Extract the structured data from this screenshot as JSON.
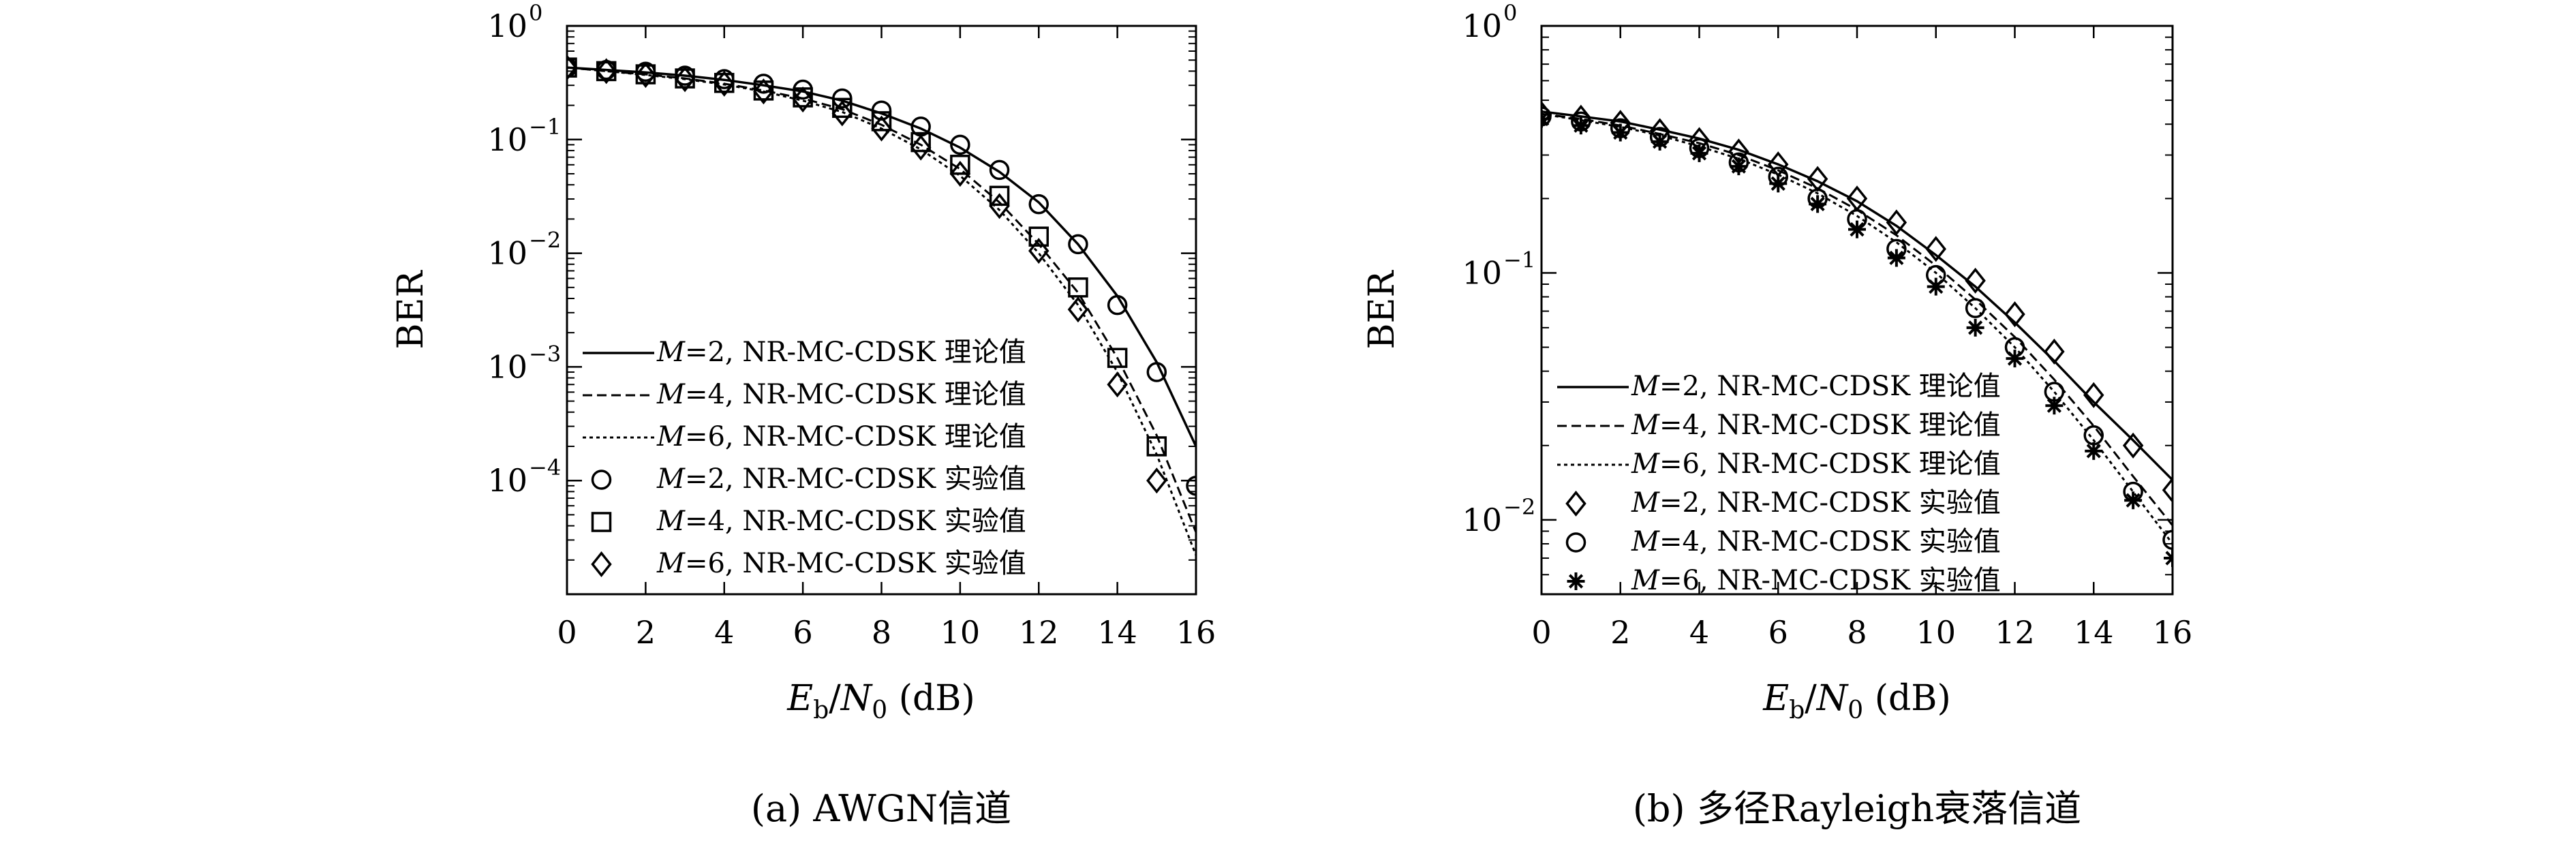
{
  "chart_data": [
    {
      "type": "line",
      "caption": "(a) AWGN信道",
      "ylabel": "BER",
      "xlabel": {
        "base": "E",
        "sub1": "b",
        "mid": "/N",
        "sub2": "0",
        "unit": " (dB)"
      },
      "xlim": [
        0,
        16
      ],
      "ylim": [
        1e-05,
        1
      ],
      "yscale": "log",
      "x_ticks": [
        0,
        2,
        4,
        6,
        8,
        10,
        12,
        14,
        16
      ],
      "y_ticks": [
        {
          "value": 1,
          "label": "10",
          "exp": "0"
        },
        {
          "value": 0.1,
          "label": "10",
          "exp": "−1"
        },
        {
          "value": 0.01,
          "label": "10",
          "exp": "−2"
        },
        {
          "value": 0.001,
          "label": "10",
          "exp": "−3"
        },
        {
          "value": 0.0001,
          "label": "10",
          "exp": "−4"
        }
      ],
      "grid": false,
      "legend_position": "bottom-left",
      "x": [
        0,
        1,
        2,
        3,
        4,
        5,
        6,
        7,
        8,
        9,
        10,
        11,
        12,
        13,
        14,
        15,
        16
      ],
      "series": [
        {
          "label": "=2, NR-MC-CDSK 理论值",
          "var": "M",
          "kind": "line",
          "dash": "solid",
          "values": [
            0.43,
            0.41,
            0.39,
            0.365,
            0.335,
            0.3,
            0.265,
            0.22,
            0.17,
            0.125,
            0.085,
            0.052,
            0.028,
            0.012,
            0.0042,
            0.0011,
            0.0002
          ]
        },
        {
          "label": "=4, NR-MC-CDSK 理论值",
          "var": "M",
          "kind": "line",
          "dash": "dashed",
          "values": [
            0.43,
            0.4,
            0.375,
            0.345,
            0.31,
            0.27,
            0.23,
            0.185,
            0.135,
            0.09,
            0.055,
            0.028,
            0.012,
            0.0045,
            0.0012,
            0.00025,
            3.5e-05
          ]
        },
        {
          "label": "=6, NR-MC-CDSK 理论值",
          "var": "M",
          "kind": "line",
          "dash": "dotted",
          "values": [
            0.43,
            0.4,
            0.37,
            0.34,
            0.305,
            0.265,
            0.22,
            0.175,
            0.125,
            0.082,
            0.048,
            0.024,
            0.01,
            0.0035,
            0.0009,
            0.00017,
            2.2e-05
          ]
        },
        {
          "label": "=2, NR-MC-CDSK 实验值",
          "var": "M",
          "kind": "marker",
          "marker": "circle",
          "values": [
            0.43,
            0.41,
            0.395,
            0.365,
            0.34,
            0.31,
            0.275,
            0.23,
            0.18,
            0.13,
            0.09,
            0.054,
            0.027,
            0.012,
            0.0035,
            0.0009,
            9e-05
          ]
        },
        {
          "label": "=4, NR-MC-CDSK 实验值",
          "var": "M",
          "kind": "marker",
          "marker": "square",
          "values": [
            0.43,
            0.4,
            0.375,
            0.345,
            0.315,
            0.27,
            0.235,
            0.19,
            0.145,
            0.095,
            0.06,
            0.032,
            0.014,
            0.005,
            0.0012,
            0.0002,
            null
          ]
        },
        {
          "label": "=6, NR-MC-CDSK 实验值",
          "var": "M",
          "kind": "marker",
          "marker": "diamond",
          "values": [
            0.43,
            0.4,
            0.37,
            0.34,
            0.31,
            0.265,
            0.225,
            0.17,
            0.125,
            0.085,
            0.05,
            0.026,
            0.0105,
            0.0032,
            0.0007,
            0.0001,
            null
          ]
        }
      ]
    },
    {
      "type": "line",
      "caption": "(b) 多径Rayleigh衰落信道",
      "ylabel": "BER",
      "xlabel": {
        "base": "E",
        "sub1": "b",
        "mid": "/N",
        "sub2": "0",
        "unit": " (dB)"
      },
      "xlim": [
        0,
        16
      ],
      "ylim": [
        0.005,
        1
      ],
      "yscale": "log",
      "x_ticks": [
        0,
        2,
        4,
        6,
        8,
        10,
        12,
        14,
        16
      ],
      "y_ticks": [
        {
          "value": 1,
          "label": "10",
          "exp": "0"
        },
        {
          "value": 0.1,
          "label": "10",
          "exp": "−1"
        },
        {
          "value": 0.01,
          "label": "10",
          "exp": "−2"
        }
      ],
      "grid": false,
      "legend_position": "bottom-left",
      "x": [
        0,
        1,
        2,
        3,
        4,
        5,
        6,
        7,
        8,
        9,
        10,
        11,
        12,
        13,
        14,
        15,
        16
      ],
      "series": [
        {
          "label": "=2, NR-MC-CDSK 理论值",
          "var": "M",
          "kind": "line",
          "dash": "solid",
          "values": [
            0.45,
            0.43,
            0.41,
            0.38,
            0.35,
            0.315,
            0.275,
            0.235,
            0.195,
            0.155,
            0.118,
            0.088,
            0.063,
            0.044,
            0.03,
            0.021,
            0.0145
          ]
        },
        {
          "label": "=4, NR-MC-CDSK 理论值",
          "var": "M",
          "kind": "line",
          "dash": "dashed",
          "values": [
            0.44,
            0.42,
            0.395,
            0.365,
            0.335,
            0.3,
            0.26,
            0.22,
            0.18,
            0.142,
            0.107,
            0.078,
            0.055,
            0.037,
            0.024,
            0.015,
            0.0095
          ]
        },
        {
          "label": "=6, NR-MC-CDSK 理论值",
          "var": "M",
          "kind": "line",
          "dash": "dotted",
          "values": [
            0.44,
            0.415,
            0.39,
            0.36,
            0.325,
            0.29,
            0.25,
            0.21,
            0.17,
            0.133,
            0.1,
            0.072,
            0.05,
            0.033,
            0.021,
            0.013,
            0.008
          ]
        },
        {
          "label": "=2, NR-MC-CDSK 实验值",
          "var": "M",
          "kind": "marker",
          "marker": "diamond",
          "values": [
            0.44,
            0.425,
            0.405,
            0.375,
            0.345,
            0.31,
            0.275,
            0.24,
            0.2,
            0.16,
            0.125,
            0.093,
            0.068,
            0.048,
            0.032,
            0.02,
            0.0132
          ]
        },
        {
          "label": "=4, NR-MC-CDSK 实验值",
          "var": "M",
          "kind": "marker",
          "marker": "circle",
          "values": [
            0.43,
            0.41,
            0.385,
            0.355,
            0.32,
            0.28,
            0.245,
            0.2,
            0.165,
            0.125,
            0.098,
            0.072,
            0.05,
            0.033,
            0.022,
            0.013,
            0.0083
          ]
        },
        {
          "label": "=6, NR-MC-CDSK 实验值",
          "var": "M",
          "kind": "marker",
          "marker": "star",
          "values": [
            0.42,
            0.395,
            0.37,
            0.34,
            0.305,
            0.27,
            0.23,
            0.19,
            0.15,
            0.115,
            0.088,
            0.06,
            0.045,
            0.029,
            0.019,
            0.012,
            0.007
          ]
        }
      ]
    }
  ]
}
